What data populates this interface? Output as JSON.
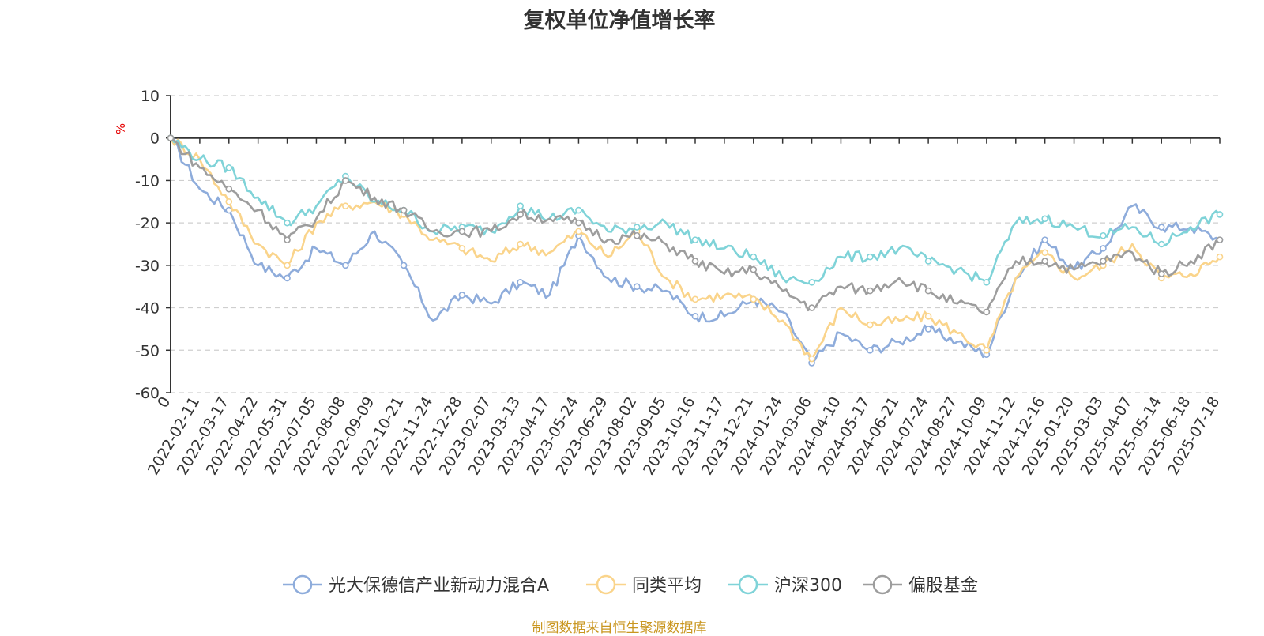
{
  "chart_data": {
    "type": "line",
    "title": "复权单位净值增长率",
    "ylabel": "%",
    "ylim": [
      -60,
      10
    ],
    "yticks": [
      10,
      0,
      -10,
      -20,
      -30,
      -40,
      -50,
      -60
    ],
    "x_tick_labels": [
      "0",
      "2022-02-11",
      "2022-03-17",
      "2022-04-22",
      "2022-05-31",
      "2022-07-05",
      "2022-08-08",
      "2022-09-09",
      "2022-10-21",
      "2022-11-24",
      "2022-12-28",
      "2023-02-07",
      "2023-03-13",
      "2023-04-17",
      "2023-05-24",
      "2023-06-29",
      "2023-08-02",
      "2023-09-05",
      "2023-10-16",
      "2023-11-17",
      "2023-12-21",
      "2024-01-24",
      "2024-03-06",
      "2024-04-10",
      "2024-05-17",
      "2024-06-21",
      "2024-07-24",
      "2024-08-27",
      "2024-10-09",
      "2024-11-12",
      "2024-12-16",
      "2025-01-20",
      "2025-03-03",
      "2025-04-07",
      "2025-05-14",
      "2025-06-18",
      "2025-07-18"
    ],
    "grid": "dashed-horizontal",
    "legend_position": "bottom",
    "series": [
      {
        "name": "光大保德信产业新动力混合A",
        "color": "#8eacdb",
        "values": [
          0,
          -12,
          -17,
          -30,
          -33,
          -26,
          -30,
          -22,
          -30,
          -43,
          -37,
          -39,
          -34,
          -37,
          -23,
          -33,
          -35,
          -36,
          -42,
          -42,
          -38,
          -41,
          -53,
          -46,
          -50,
          -48,
          -45,
          -48,
          -51,
          -33,
          -24,
          -31,
          -26,
          -16,
          -21,
          -21,
          -24
        ]
      },
      {
        "name": "同类平均",
        "color": "#fad48b",
        "values": [
          0,
          -5,
          -15,
          -25,
          -30,
          -20,
          -16,
          -15,
          -18,
          -24,
          -26,
          -29,
          -25,
          -27,
          -22,
          -28,
          -22,
          -33,
          -38,
          -37,
          -38,
          -43,
          -52,
          -40,
          -44,
          -43,
          -42,
          -46,
          -50,
          -33,
          -27,
          -33,
          -30,
          -25,
          -33,
          -32,
          -28
        ]
      },
      {
        "name": "沪深300",
        "color": "#7fd3d8",
        "values": [
          0,
          -5,
          -7,
          -14,
          -20,
          -16,
          -9,
          -15,
          -17,
          -22,
          -21,
          -22,
          -16,
          -19,
          -17,
          -22,
          -21,
          -20,
          -24,
          -26,
          -28,
          -33,
          -34,
          -28,
          -28,
          -26,
          -29,
          -31,
          -34,
          -20,
          -19,
          -21,
          -23,
          -21,
          -25,
          -21,
          -18
        ]
      },
      {
        "name": "偏股基金",
        "color": "#9d9d9d",
        "values": [
          0,
          -7,
          -12,
          -17,
          -24,
          -19,
          -10,
          -14,
          -17,
          -22,
          -22,
          -22,
          -18,
          -19,
          -20,
          -24,
          -23,
          -25,
          -29,
          -32,
          -31,
          -36,
          -40,
          -35,
          -36,
          -33,
          -36,
          -39,
          -41,
          -29,
          -29,
          -31,
          -29,
          -27,
          -32,
          -29,
          -24
        ]
      }
    ]
  },
  "source_note": "制图数据来自恒生聚源数据库"
}
